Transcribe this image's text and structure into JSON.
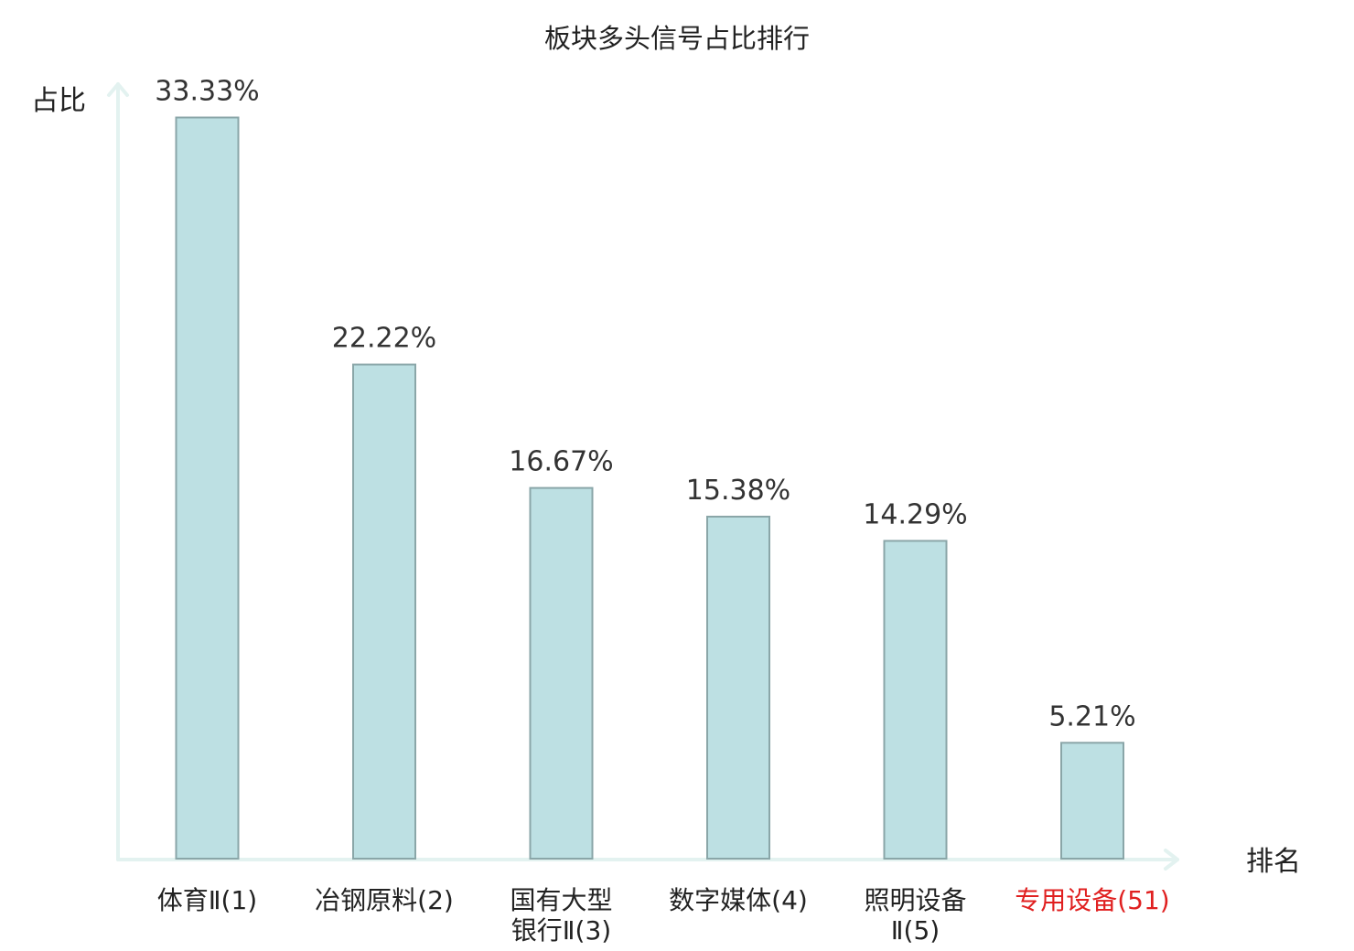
{
  "chart_data": {
    "type": "bar",
    "title": "板块多头信号占比排行",
    "xlabel": "排名",
    "ylabel": "占比",
    "categories": [
      [
        "体育Ⅱ(1)"
      ],
      [
        "冶钢原料(2)"
      ],
      [
        "国有大型",
        "银行Ⅱ(3)"
      ],
      [
        "数字媒体(4)"
      ],
      [
        "照明设备",
        "Ⅱ(5)"
      ],
      [
        "专用设备(51)"
      ]
    ],
    "values": [
      33.33,
      22.22,
      16.67,
      15.38,
      14.29,
      5.21
    ],
    "value_labels": [
      "33.33%",
      "22.22%",
      "16.67%",
      "15.38%",
      "14.29%",
      "5.21%"
    ],
    "highlight_index": 5,
    "colors": {
      "bar_fill": "#bde0e3",
      "bar_stroke": "#8aa6a8",
      "axis": "#e3f2f0",
      "text": "#222222",
      "value_text": "#333333",
      "highlight_text": "#e02020"
    },
    "ylim": [
      0,
      34.5
    ],
    "grid": false,
    "legend": "none"
  }
}
